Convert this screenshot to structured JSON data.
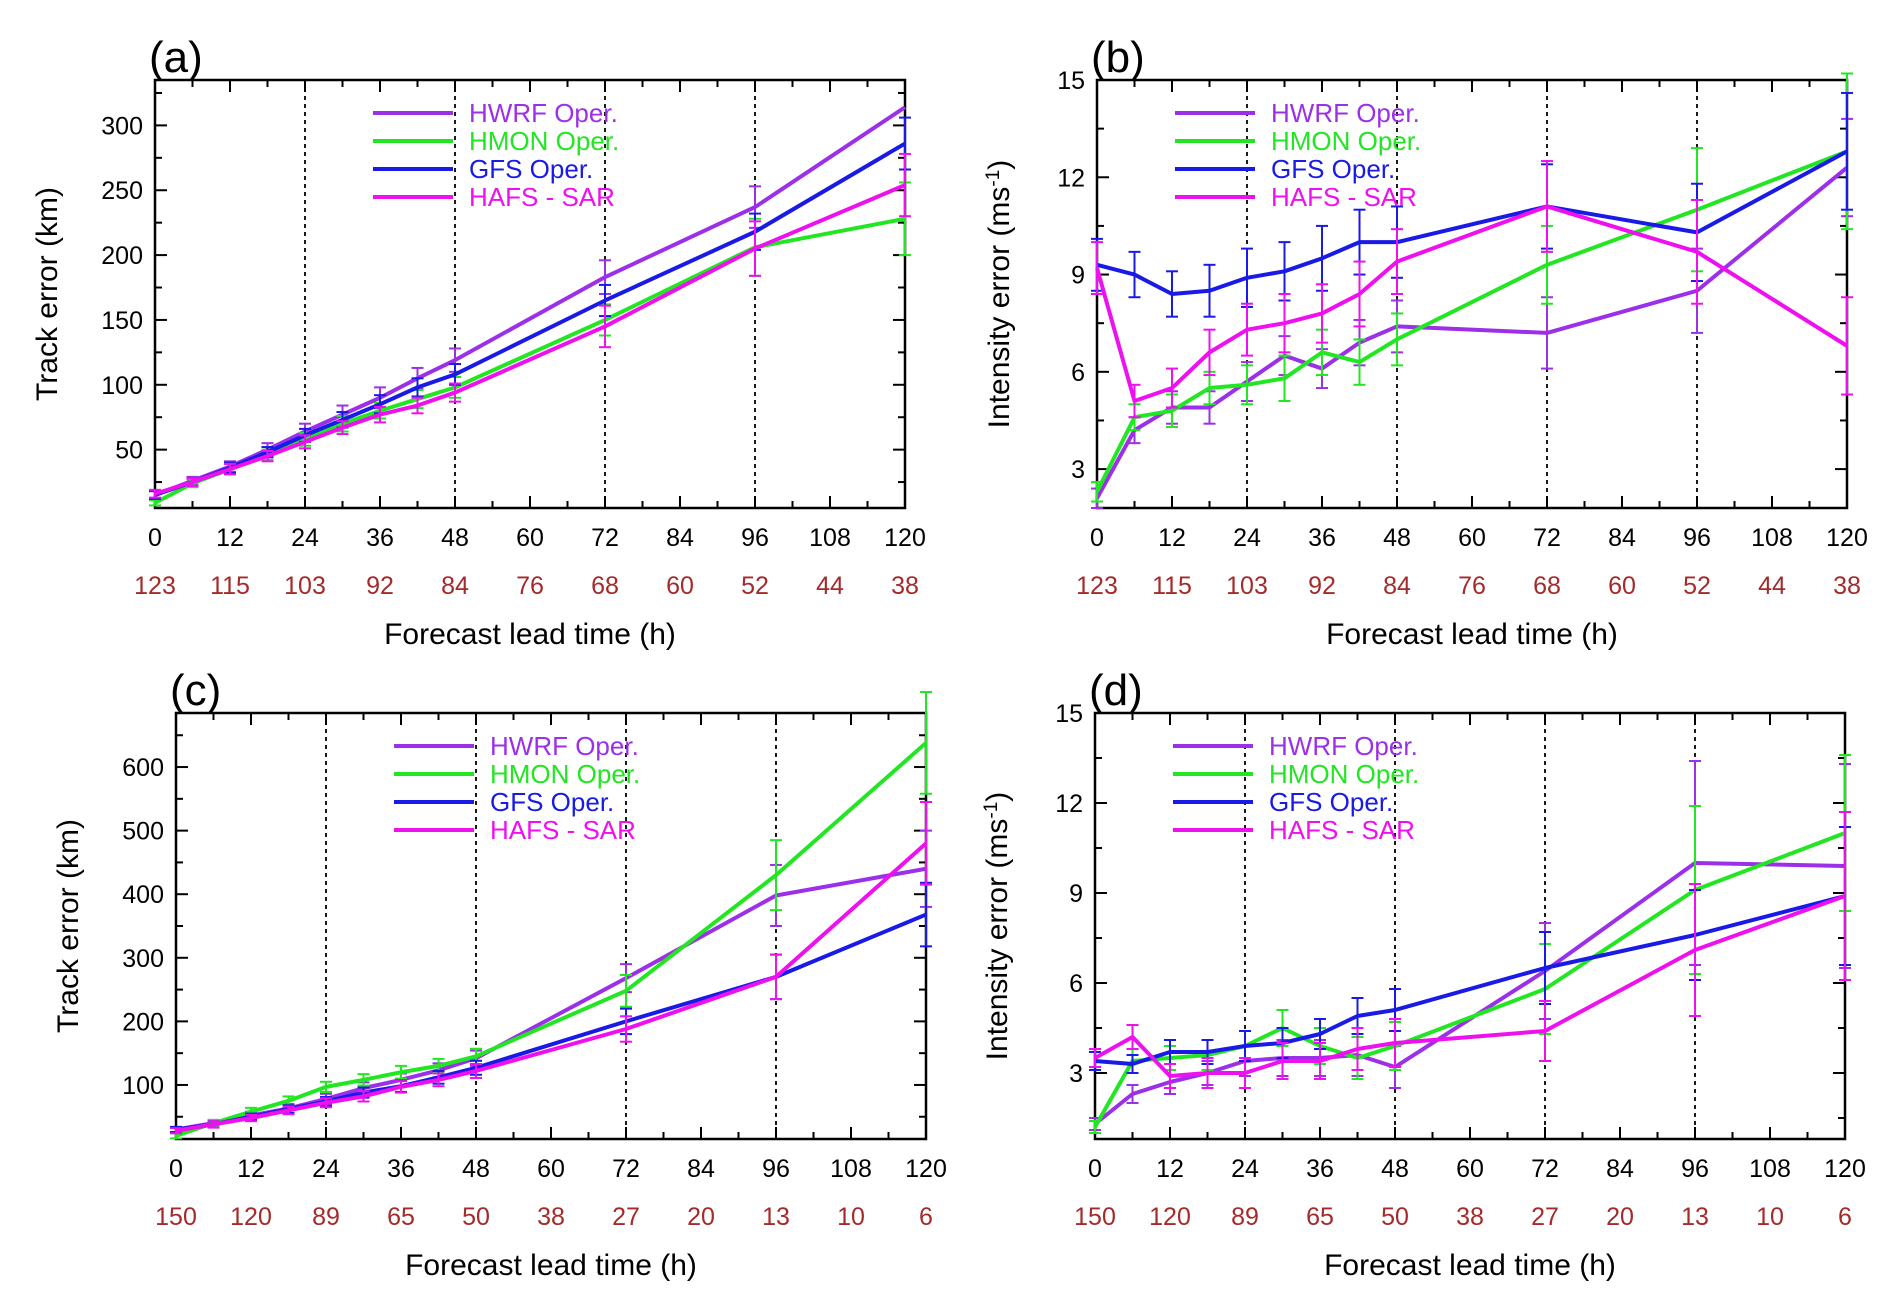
{
  "figure": {
    "xlabel": "Forecast lead time (h)",
    "colors": {
      "hwrf": "#9b30e8",
      "hmon": "#22e622",
      "gfs": "#1a1ae6",
      "hafs": "#ee10ee",
      "count": "#a52a2a",
      "axis": "#000000",
      "grid": "#000000"
    }
  },
  "chart_data": [
    {
      "panel_label": "(a)",
      "type": "line",
      "ylabel": "Track error (km)",
      "xlabel": "Forecast lead time (h)",
      "xlim": [
        0,
        120
      ],
      "ylim": [
        5,
        335
      ],
      "xticks": [
        0,
        12,
        24,
        36,
        48,
        60,
        72,
        84,
        96,
        108,
        120
      ],
      "yticks": [
        50,
        100,
        150,
        200,
        250,
        300
      ],
      "count_labels": [
        "123",
        "115",
        "103",
        "92",
        "84",
        "76",
        "68",
        "60",
        "52",
        "44",
        "38"
      ],
      "vlines": [
        24,
        48,
        72,
        96
      ],
      "legend": [
        "HWRF Oper.",
        "HMON Oper.",
        "GFS Oper.",
        "HAFS - SAR"
      ],
      "legend_position": "top-center",
      "grid": false,
      "series": [
        {
          "name": "HWRF Oper.",
          "color_key": "hwrf",
          "x": [
            0,
            6,
            12,
            18,
            24,
            30,
            36,
            42,
            48,
            72,
            96,
            120
          ],
          "y": [
            15,
            26,
            37,
            50,
            64,
            77,
            90,
            105,
            119,
            183,
            237,
            314
          ],
          "err": [
            3,
            3,
            4,
            5,
            6,
            7,
            8,
            8,
            9,
            13,
            16,
            0
          ]
        },
        {
          "name": "HMON Oper.",
          "color_key": "hmon",
          "x": [
            0,
            6,
            12,
            18,
            24,
            30,
            36,
            42,
            48,
            72,
            96,
            120
          ],
          "y": [
            9,
            24,
            35,
            46,
            58,
            70,
            80,
            89,
            98,
            150,
            206,
            228
          ],
          "err": [
            2,
            3,
            4,
            4,
            5,
            6,
            6,
            7,
            8,
            12,
            22,
            28
          ]
        },
        {
          "name": "GFS Oper.",
          "color_key": "gfs",
          "x": [
            0,
            6,
            12,
            18,
            24,
            30,
            36,
            42,
            48,
            72,
            96,
            120
          ],
          "y": [
            15,
            25,
            36,
            48,
            61,
            73,
            85,
            98,
            108,
            165,
            218,
            286
          ],
          "err": [
            3,
            3,
            4,
            4,
            5,
            6,
            7,
            7,
            8,
            12,
            14,
            20
          ]
        },
        {
          "name": "HAFS - SAR",
          "color_key": "hafs",
          "x": [
            0,
            6,
            12,
            18,
            24,
            30,
            36,
            42,
            48,
            72,
            96,
            120
          ],
          "y": [
            16,
            25,
            35,
            45,
            56,
            67,
            77,
            84,
            94,
            145,
            205,
            254
          ],
          "err": [
            3,
            3,
            4,
            4,
            5,
            5,
            6,
            6,
            7,
            16,
            21,
            24
          ]
        }
      ]
    },
    {
      "panel_label": "(b)",
      "type": "line",
      "ylabel": "Intensity error (ms",
      "ylabel_sup": "-1",
      "ylabel_close": ")",
      "xlabel": "Forecast lead time (h)",
      "xlim": [
        0,
        120
      ],
      "ylim": [
        1.8,
        15
      ],
      "xticks": [
        0,
        12,
        24,
        36,
        48,
        60,
        72,
        84,
        96,
        108,
        120
      ],
      "yticks": [
        3,
        6,
        9,
        12,
        15
      ],
      "count_labels": [
        "123",
        "115",
        "103",
        "92",
        "84",
        "76",
        "68",
        "60",
        "52",
        "44",
        "38"
      ],
      "vlines": [
        24,
        48,
        72,
        96
      ],
      "legend": [
        "HWRF Oper.",
        "HMON Oper.",
        "GFS Oper.",
        "HAFS - SAR"
      ],
      "legend_position": "top-left",
      "grid": false,
      "series": [
        {
          "name": "HWRF Oper.",
          "color_key": "hwrf",
          "x": [
            0,
            6,
            12,
            18,
            24,
            30,
            36,
            42,
            48,
            72,
            96,
            120
          ],
          "y": [
            2.1,
            4.2,
            4.9,
            4.9,
            5.7,
            6.5,
            6.1,
            6.9,
            7.4,
            7.2,
            8.5,
            12.3
          ],
          "err": [
            0.3,
            0.4,
            0.5,
            0.5,
            0.6,
            0.6,
            0.6,
            0.7,
            0.8,
            1.1,
            1.3,
            1.5
          ]
        },
        {
          "name": "HMON Oper.",
          "color_key": "hmon",
          "x": [
            0,
            6,
            12,
            18,
            24,
            30,
            36,
            42,
            48,
            72,
            96,
            120
          ],
          "y": [
            2.3,
            4.6,
            4.8,
            5.5,
            5.6,
            5.8,
            6.6,
            6.3,
            7.0,
            9.3,
            11.0,
            12.8
          ],
          "err": [
            0.3,
            0.4,
            0.5,
            0.5,
            0.6,
            0.7,
            0.7,
            0.7,
            0.8,
            1.2,
            1.9,
            2.4
          ]
        },
        {
          "name": "GFS Oper.",
          "color_key": "gfs",
          "x": [
            0,
            6,
            12,
            18,
            24,
            30,
            36,
            42,
            48,
            72,
            96,
            120
          ],
          "y": [
            9.3,
            9.0,
            8.4,
            8.5,
            8.9,
            9.1,
            9.5,
            10.0,
            10.0,
            11.1,
            10.3,
            12.8
          ],
          "err": [
            0.8,
            0.7,
            0.7,
            0.8,
            0.9,
            0.9,
            1.0,
            1.0,
            1.1,
            1.3,
            1.5,
            1.8
          ]
        },
        {
          "name": "HAFS - SAR",
          "color_key": "hafs",
          "x": [
            0,
            6,
            12,
            18,
            24,
            30,
            36,
            42,
            48,
            72,
            96,
            120
          ],
          "y": [
            9.2,
            5.1,
            5.5,
            6.6,
            7.3,
            7.5,
            7.8,
            8.4,
            9.4,
            11.1,
            9.7,
            6.8
          ],
          "err": [
            0.8,
            0.5,
            0.6,
            0.7,
            0.8,
            0.9,
            0.9,
            1.0,
            1.0,
            1.4,
            1.6,
            1.5
          ]
        }
      ]
    },
    {
      "panel_label": "(c)",
      "type": "line",
      "ylabel": "Track error (km)",
      "xlabel": "Forecast lead time (h)",
      "xlim": [
        0,
        120
      ],
      "ylim": [
        15,
        685
      ],
      "xticks": [
        0,
        12,
        24,
        36,
        48,
        60,
        72,
        84,
        96,
        108,
        120
      ],
      "yticks": [
        100,
        200,
        300,
        400,
        500,
        600
      ],
      "count_labels": [
        "150",
        "120",
        "89",
        "65",
        "50",
        "38",
        "27",
        "20",
        "13",
        "10",
        "6"
      ],
      "vlines": [
        24,
        48,
        72,
        96
      ],
      "legend": [
        "HWRF Oper.",
        "HMON Oper.",
        "GFS Oper.",
        "HAFS - SAR"
      ],
      "legend_position": "top-center",
      "grid": false,
      "series": [
        {
          "name": "HWRF Oper.",
          "color_key": "hwrf",
          "x": [
            0,
            6,
            12,
            18,
            24,
            30,
            36,
            42,
            48,
            72,
            96,
            120
          ],
          "y": [
            30,
            40,
            52,
            63,
            78,
            95,
            108,
            123,
            142,
            268,
            398,
            440
          ],
          "err": [
            4,
            5,
            6,
            7,
            8,
            9,
            10,
            11,
            12,
            22,
            48,
            60
          ]
        },
        {
          "name": "HMON Oper.",
          "color_key": "hmon",
          "x": [
            0,
            6,
            12,
            18,
            24,
            30,
            36,
            42,
            48,
            72,
            96,
            120
          ],
          "y": [
            20,
            40,
            58,
            75,
            97,
            108,
            120,
            130,
            145,
            248,
            430,
            638
          ],
          "err": [
            4,
            5,
            6,
            7,
            8,
            9,
            10,
            11,
            12,
            25,
            55,
            80
          ]
        },
        {
          "name": "GFS Oper.",
          "color_key": "gfs",
          "x": [
            0,
            6,
            12,
            18,
            24,
            30,
            36,
            42,
            48,
            72,
            96,
            120
          ],
          "y": [
            30,
            38,
            50,
            62,
            74,
            88,
            98,
            112,
            127,
            200,
            270,
            368
          ],
          "err": [
            4,
            5,
            5,
            6,
            7,
            8,
            9,
            10,
            11,
            20,
            35,
            50
          ]
        },
        {
          "name": "HAFS - SAR",
          "color_key": "hafs",
          "x": [
            0,
            6,
            12,
            18,
            24,
            30,
            36,
            42,
            48,
            72,
            96,
            120
          ],
          "y": [
            28,
            38,
            48,
            60,
            72,
            82,
            97,
            108,
            122,
            188,
            270,
            480
          ],
          "err": [
            4,
            5,
            5,
            6,
            7,
            8,
            9,
            10,
            11,
            20,
            35,
            65
          ]
        }
      ]
    },
    {
      "panel_label": "(d)",
      "type": "line",
      "ylabel": "Intensity error (ms",
      "ylabel_sup": "-1",
      "ylabel_close": ")",
      "xlabel": "Forecast lead time (h)",
      "xlim": [
        0,
        120
      ],
      "ylim": [
        0.8,
        15
      ],
      "xticks": [
        0,
        12,
        24,
        36,
        48,
        60,
        72,
        84,
        96,
        108,
        120
      ],
      "yticks": [
        3,
        6,
        9,
        12,
        15
      ],
      "count_labels": [
        "150",
        "120",
        "89",
        "65",
        "50",
        "38",
        "27",
        "20",
        "13",
        "10",
        "6"
      ],
      "vlines": [
        24,
        48,
        72,
        96
      ],
      "legend": [
        "HWRF Oper.",
        "HMON Oper.",
        "GFS Oper.",
        "HAFS - SAR"
      ],
      "legend_position": "top-left",
      "grid": false,
      "series": [
        {
          "name": "HWRF Oper.",
          "color_key": "hwrf",
          "x": [
            0,
            6,
            12,
            18,
            24,
            30,
            36,
            42,
            48,
            72,
            96,
            120
          ],
          "y": [
            1.3,
            2.3,
            2.7,
            3.0,
            3.4,
            3.5,
            3.5,
            3.6,
            3.2,
            6.4,
            10.0,
            9.9
          ],
          "err": [
            0.2,
            0.3,
            0.4,
            0.4,
            0.5,
            0.6,
            0.6,
            0.7,
            0.7,
            1.6,
            3.4,
            3.4
          ]
        },
        {
          "name": "HMON Oper.",
          "color_key": "hmon",
          "x": [
            0,
            6,
            12,
            18,
            24,
            30,
            36,
            42,
            48,
            72,
            96,
            120
          ],
          "y": [
            1.2,
            3.4,
            3.5,
            3.6,
            3.9,
            4.5,
            3.9,
            3.5,
            3.9,
            5.8,
            9.1,
            11.0
          ],
          "err": [
            0.2,
            0.4,
            0.4,
            0.5,
            0.5,
            0.6,
            0.6,
            0.7,
            0.8,
            1.5,
            2.8,
            2.6
          ]
        },
        {
          "name": "GFS Oper.",
          "color_key": "gfs",
          "x": [
            0,
            6,
            12,
            18,
            24,
            30,
            36,
            42,
            48,
            72,
            96,
            120
          ],
          "y": [
            3.4,
            3.3,
            3.7,
            3.7,
            3.9,
            4.0,
            4.3,
            4.9,
            5.1,
            6.5,
            7.6,
            8.9
          ],
          "err": [
            0.3,
            0.3,
            0.4,
            0.4,
            0.5,
            0.5,
            0.5,
            0.6,
            0.7,
            1.2,
            1.5,
            2.3
          ]
        },
        {
          "name": "HAFS - SAR",
          "color_key": "hafs",
          "x": [
            0,
            6,
            12,
            18,
            24,
            30,
            36,
            42,
            48,
            72,
            96,
            120
          ],
          "y": [
            3.5,
            4.2,
            2.9,
            3.0,
            3.0,
            3.4,
            3.4,
            3.8,
            4.0,
            4.4,
            7.1,
            8.9
          ],
          "err": [
            0.3,
            0.4,
            0.4,
            0.5,
            0.5,
            0.6,
            0.6,
            0.7,
            0.8,
            1.0,
            2.2,
            2.8
          ]
        }
      ]
    }
  ]
}
